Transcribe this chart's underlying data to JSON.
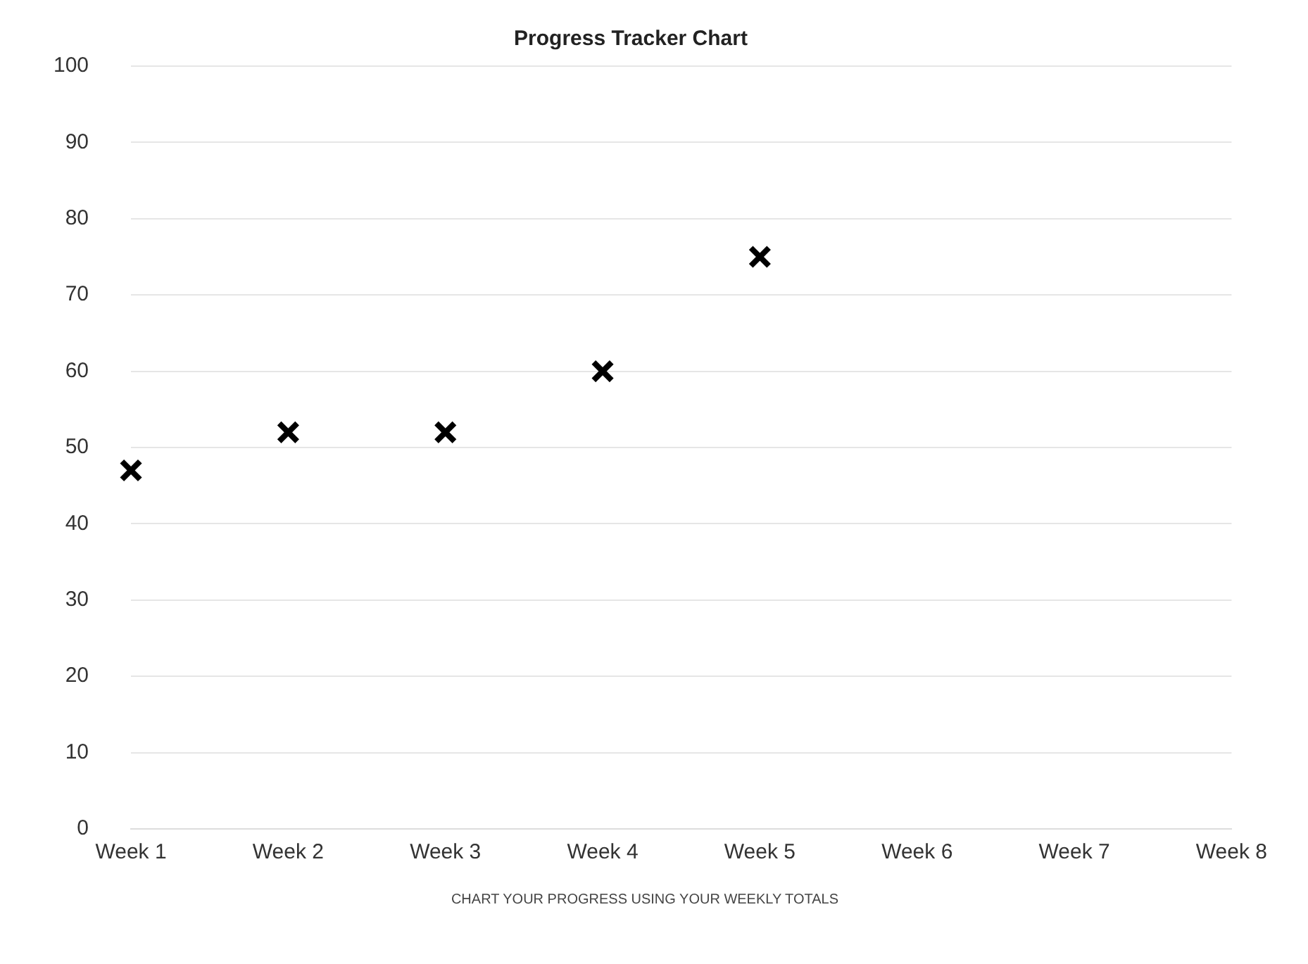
{
  "chart_data": {
    "type": "scatter",
    "title": "Progress Tracker Chart",
    "categories": [
      "Week 1",
      "Week 2",
      "Week 3",
      "Week 4",
      "Week 5",
      "Week 6",
      "Week 7",
      "Week 8"
    ],
    "series": [
      {
        "color": "#000000",
        "values": [
          47,
          52,
          52,
          60,
          75,
          null,
          null,
          null
        ]
      }
    ],
    "ylim": [
      0,
      100
    ],
    "yticks": [
      0,
      10,
      20,
      30,
      40,
      50,
      60,
      70,
      80,
      90,
      100
    ],
    "grid": "y",
    "legend": false,
    "marker": "cross",
    "annotations": [
      "CHART YOUR PROGRESS USING YOUR WEEKLY TOTALS"
    ]
  }
}
